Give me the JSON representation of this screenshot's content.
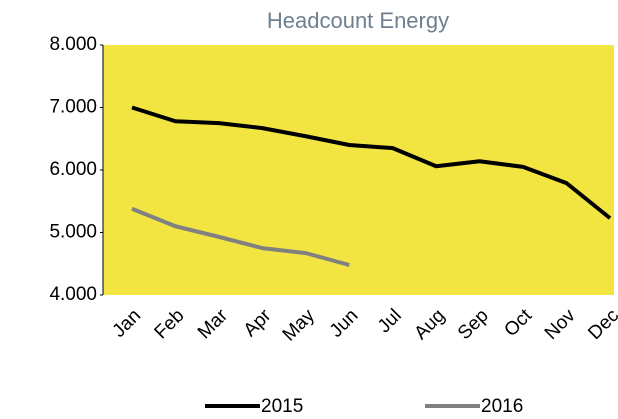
{
  "chart_data": {
    "type": "line",
    "title": "Headcount Energy",
    "categories": [
      "Jan",
      "Feb",
      "Mar",
      "Apr",
      "May",
      "Jun",
      "Jul",
      "Aug",
      "Sep",
      "Oct",
      "Nov",
      "Dec"
    ],
    "series": [
      {
        "name": "2015",
        "color": "#000000",
        "values": [
          7000,
          6780,
          6750,
          6670,
          6540,
          6400,
          6350,
          6060,
          6140,
          6050,
          5790,
          5230
        ]
      },
      {
        "name": "2016",
        "color": "#808080",
        "values": [
          5380,
          5100,
          4930,
          4750,
          4670,
          4480,
          null,
          null,
          null,
          null,
          null,
          null
        ]
      }
    ],
    "ylim": [
      4000,
      8000
    ],
    "yticks": [
      {
        "value": 4000,
        "label": "4.000"
      },
      {
        "value": 5000,
        "label": "5.000"
      },
      {
        "value": 6000,
        "label": "6.000"
      },
      {
        "value": 7000,
        "label": "7.000"
      },
      {
        "value": 8000,
        "label": "8.000"
      }
    ],
    "plot_background": "#f2e542",
    "legend": "bottom"
  }
}
